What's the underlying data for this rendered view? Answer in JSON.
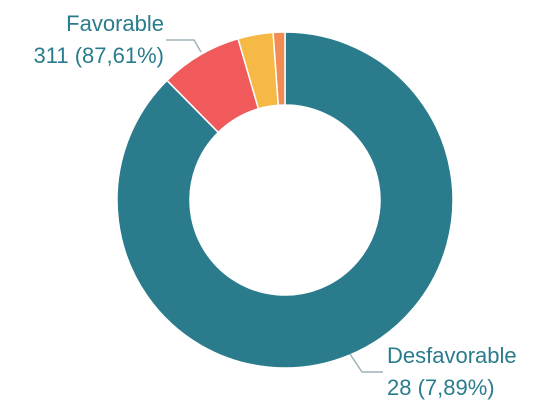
{
  "chart_data": {
    "type": "pie",
    "subtype": "donut",
    "title": "",
    "slices": [
      {
        "name": "Favorable",
        "value": 311,
        "percent_label": "311 (87,61%)",
        "color": "#2a7c8c"
      },
      {
        "name": "Desfavorable",
        "value": 28,
        "percent_label": "28 (7,89%)",
        "color": "#f05a5b"
      },
      {
        "name": "",
        "value": 12,
        "color": "#f6b945"
      },
      {
        "name": "",
        "value": 4,
        "color": "#f08c54"
      }
    ],
    "labels": [
      {
        "slice": "Favorable",
        "name": "Favorable",
        "value_text": "311 (87,61%)"
      },
      {
        "slice": "Desfavorable",
        "name": "Desfavorable",
        "value_text": "28 (7,89%)"
      }
    ],
    "label_color": "#2a7c8c",
    "leader_color": "#9fb3b8"
  }
}
